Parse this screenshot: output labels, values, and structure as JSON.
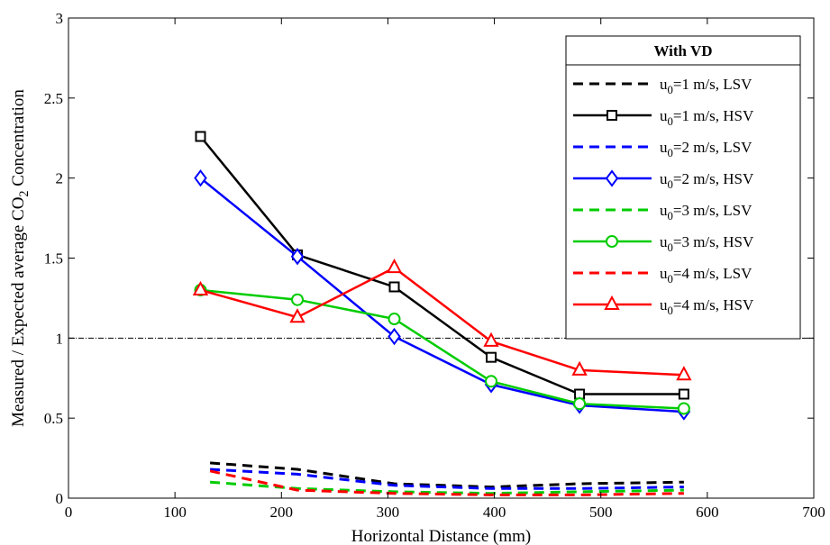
{
  "chart_data": {
    "type": "line",
    "xlabel": "Horizontal Distance (mm)",
    "ylabel": "Measured / Expected average CO₂ Concentration",
    "xlim": [
      0,
      700
    ],
    "ylim": [
      0,
      3
    ],
    "xticks": [
      0,
      100,
      200,
      300,
      400,
      500,
      600,
      700
    ],
    "yticks": [
      0,
      0.5,
      1,
      1.5,
      2,
      2.5,
      3
    ],
    "xtick_labels": [
      "0",
      "100",
      "200",
      "300",
      "400",
      "500",
      "600",
      "700"
    ],
    "ytick_labels": [
      "0",
      "0.5",
      "1",
      "1.5",
      "2",
      "2.5",
      "3"
    ],
    "grid": false,
    "reference_line": {
      "y": 1,
      "style": "dash-dot",
      "color": "#000000"
    },
    "legend": {
      "title": "With VD",
      "position": "top-right"
    },
    "series": [
      {
        "name": "u₀=1 m/s, LSV",
        "color": "#000000",
        "dashed": true,
        "marker": "none",
        "x": [
          133,
          215,
          306,
          397,
          480,
          578
        ],
        "y": [
          0.22,
          0.18,
          0.09,
          0.07,
          0.09,
          0.1
        ]
      },
      {
        "name": "u₀=1 m/s, HSV",
        "color": "#000000",
        "dashed": false,
        "marker": "square",
        "x": [
          124,
          215,
          306,
          397,
          480,
          578
        ],
        "y": [
          2.26,
          1.52,
          1.32,
          0.88,
          0.65,
          0.65
        ]
      },
      {
        "name": "u₀=2 m/s, LSV",
        "color": "#0000ff",
        "dashed": true,
        "marker": "none",
        "x": [
          133,
          215,
          306,
          397,
          480,
          578
        ],
        "y": [
          0.18,
          0.15,
          0.08,
          0.06,
          0.06,
          0.07
        ]
      },
      {
        "name": "u₀=2 m/s, HSV",
        "color": "#0000ff",
        "dashed": false,
        "marker": "diamond",
        "x": [
          124,
          215,
          306,
          397,
          480,
          578
        ],
        "y": [
          2.0,
          1.51,
          1.01,
          0.71,
          0.58,
          0.54
        ]
      },
      {
        "name": "u₀=3 m/s, LSV",
        "color": "#00cc00",
        "dashed": true,
        "marker": "none",
        "x": [
          133,
          215,
          306,
          397,
          480,
          578
        ],
        "y": [
          0.1,
          0.06,
          0.04,
          0.03,
          0.04,
          0.05
        ]
      },
      {
        "name": "u₀=3 m/s, HSV",
        "color": "#00cc00",
        "dashed": false,
        "marker": "circle",
        "x": [
          124,
          215,
          306,
          397,
          480,
          578
        ],
        "y": [
          1.3,
          1.24,
          1.12,
          0.73,
          0.59,
          0.56
        ]
      },
      {
        "name": "u₀=4 m/s, LSV",
        "color": "#ff0000",
        "dashed": true,
        "marker": "none",
        "x": [
          133,
          215,
          306,
          397,
          480,
          578
        ],
        "y": [
          0.17,
          0.05,
          0.03,
          0.02,
          0.02,
          0.03
        ]
      },
      {
        "name": "u₀=4 m/s, HSV",
        "color": "#ff0000",
        "dashed": false,
        "marker": "triangle",
        "x": [
          124,
          215,
          306,
          397,
          480,
          578
        ],
        "y": [
          1.3,
          1.13,
          1.44,
          0.98,
          0.8,
          0.77
        ]
      }
    ]
  }
}
